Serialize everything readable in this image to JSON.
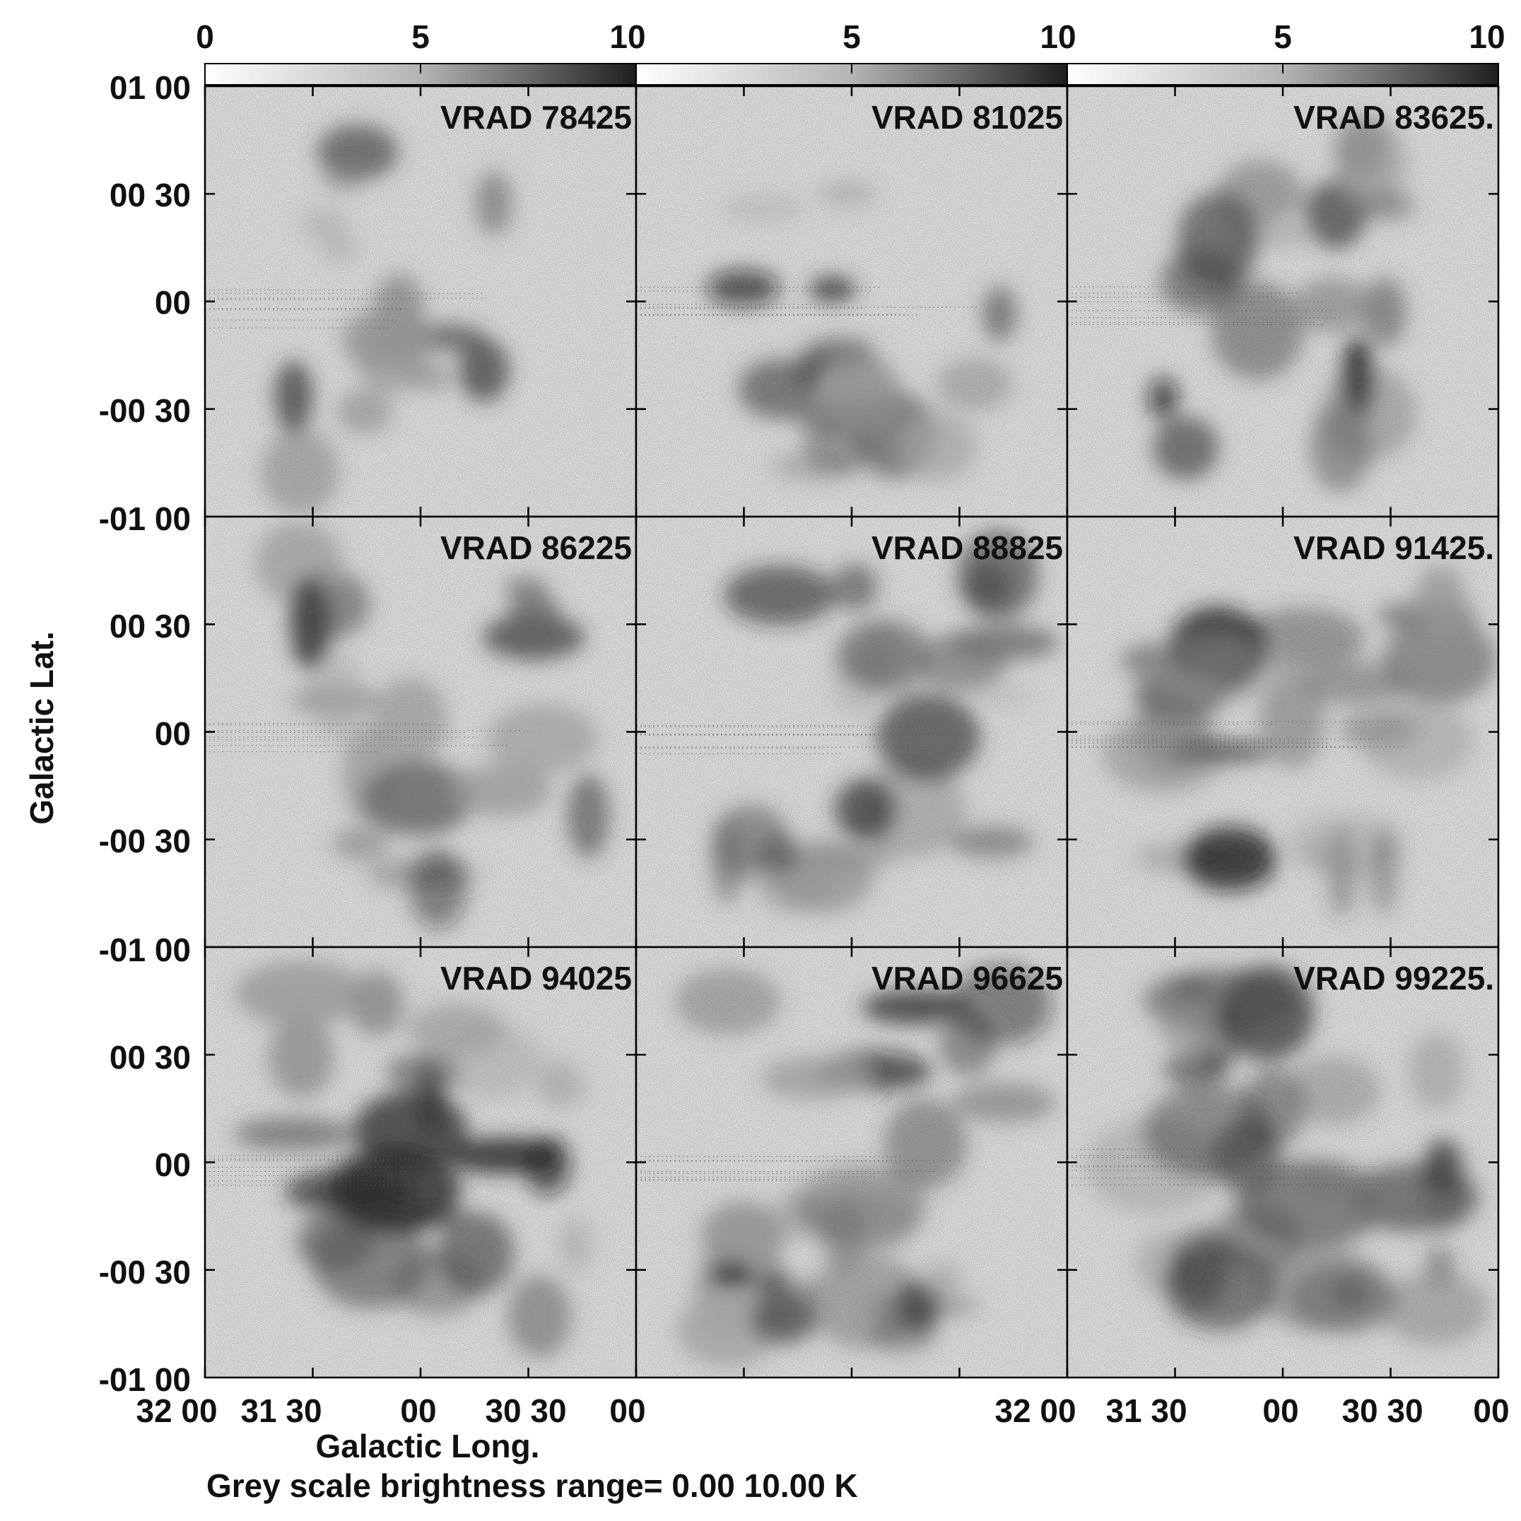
{
  "chart_data": {
    "type": "heatmap",
    "colorbar": {
      "tick_labels": [
        [
          "0",
          "5",
          "10"
        ],
        [
          "5",
          "10"
        ],
        [
          "5",
          "10"
        ]
      ],
      "range": [
        0,
        10
      ]
    },
    "ylabel": "Galactic Lat.",
    "xlabel": "Galactic Long.",
    "footer": "Grey scale brightness range= 0.00 10.00 K",
    "y_tick_labels": {
      "row0": [
        "01 00",
        "00 30",
        "00",
        "-00 30"
      ],
      "row1": [
        "-01 00",
        "00 30",
        "00",
        "-00 30"
      ],
      "row2": [
        "-01 00",
        "00 30",
        "00",
        "-00 30"
      ],
      "bottom": "-01 00"
    },
    "x_tick_labels": {
      "col0": [
        "32 00",
        "31 30",
        "00",
        "30 30"
      ],
      "col0_right": "00",
      "col1_right": "32 00",
      "col2": [
        "31 30",
        "00",
        "30 30"
      ],
      "col2_right": "00"
    },
    "panels": [
      {
        "label": "VRAD 78425",
        "row": 0,
        "col": 0
      },
      {
        "label": "VRAD 81025",
        "row": 0,
        "col": 1
      },
      {
        "label": "VRAD 83625.",
        "row": 0,
        "col": 2
      },
      {
        "label": "VRAD 86225",
        "row": 1,
        "col": 0
      },
      {
        "label": "VRAD 88825",
        "row": 1,
        "col": 1
      },
      {
        "label": "VRAD 91425.",
        "row": 1,
        "col": 2
      },
      {
        "label": "VRAD 94025",
        "row": 2,
        "col": 0
      },
      {
        "label": "VRAD 96625",
        "row": 2,
        "col": 1
      },
      {
        "label": "VRAD 99225.",
        "row": 2,
        "col": 2
      }
    ]
  }
}
